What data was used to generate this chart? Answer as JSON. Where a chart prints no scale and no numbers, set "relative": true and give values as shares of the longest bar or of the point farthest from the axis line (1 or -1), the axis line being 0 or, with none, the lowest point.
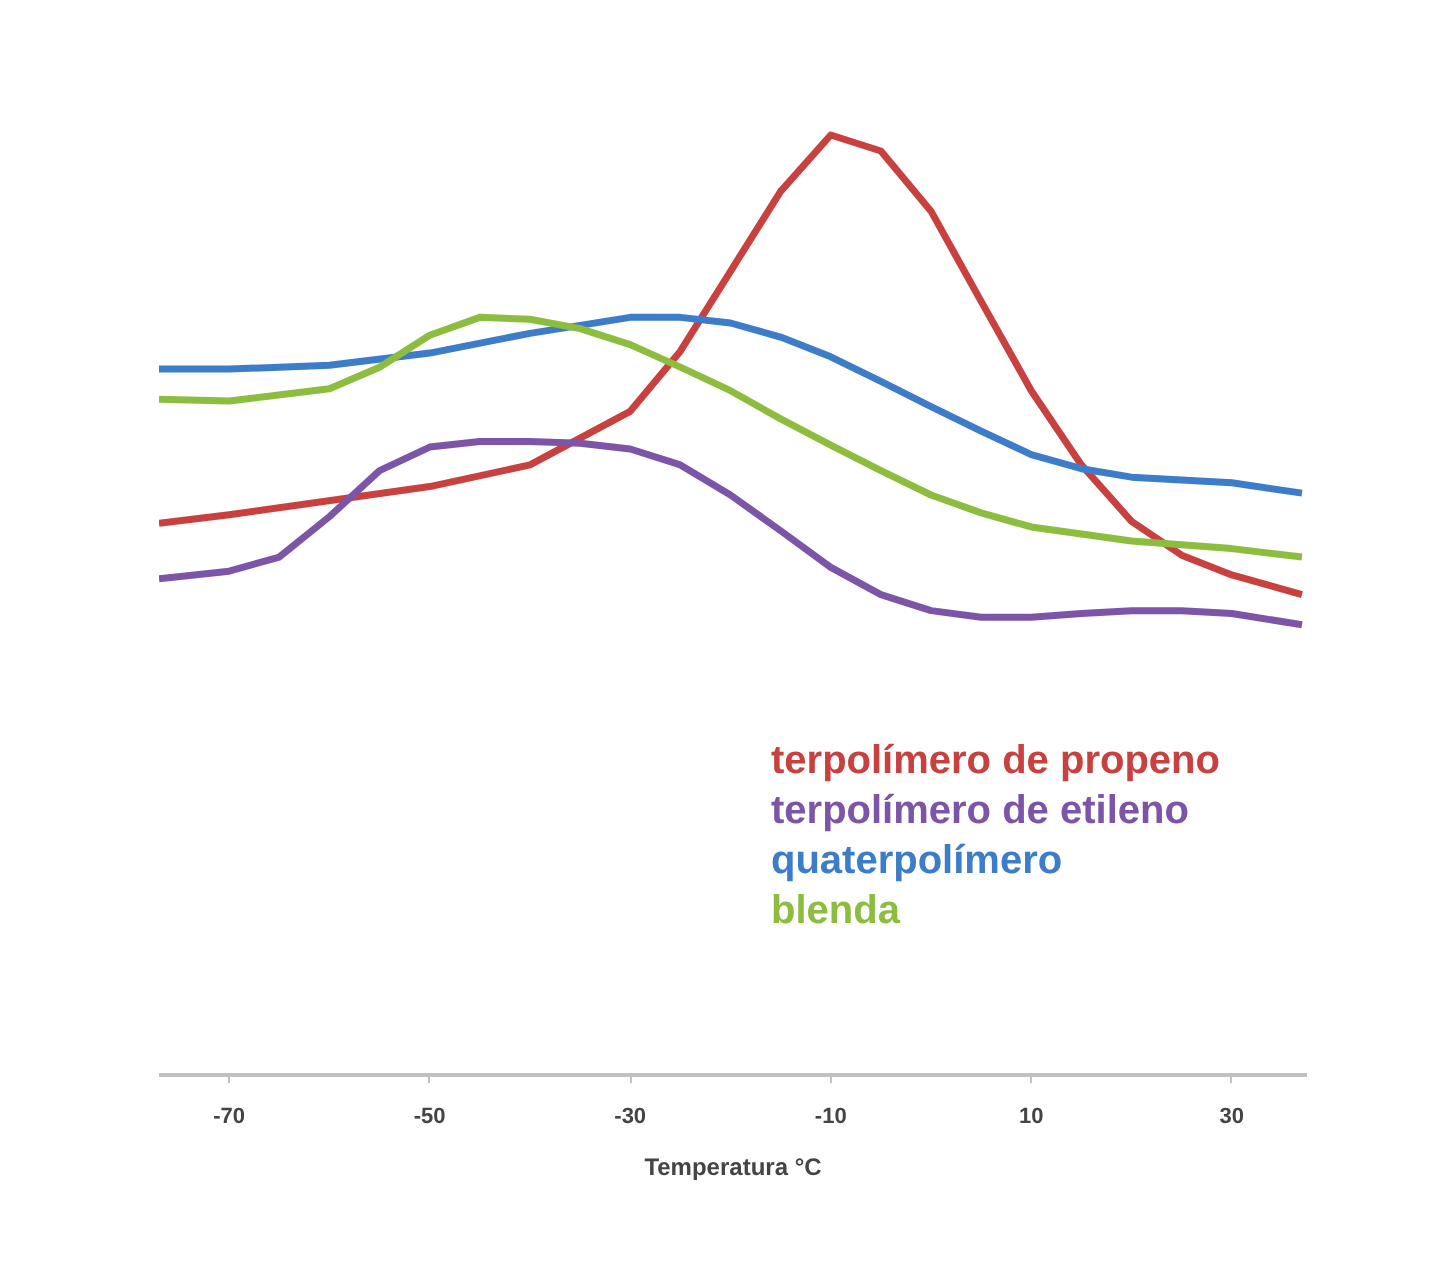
{
  "chart_data": {
    "type": "line",
    "xlabel": "Temperatura °C",
    "relative": true,
    "xlim": [
      -77,
      37.5
    ],
    "xticks": [
      -70,
      -50,
      -30,
      -10,
      10,
      30
    ],
    "grid": false,
    "legend": "bottom right",
    "marker": "none",
    "line_style": "solid",
    "series": [
      {
        "name": "terpolímero de propeno",
        "color": "#c8413f",
        "x": [
          -77,
          -70,
          -50,
          -40,
          -30,
          -25,
          -20,
          -15,
          -10,
          -5,
          0,
          5,
          10,
          15,
          20,
          25,
          30,
          37
        ],
        "values": [
          0.587,
          0.596,
          0.626,
          0.649,
          0.706,
          0.77,
          0.855,
          0.94,
          1.0,
          0.983,
          0.919,
          0.823,
          0.728,
          0.649,
          0.589,
          0.553,
          0.532,
          0.511
        ]
      },
      {
        "name": "terpolímero de etileno",
        "color": "#7d55a8",
        "x": [
          -77,
          -70,
          -65,
          -60,
          -55,
          -50,
          -45,
          -40,
          -35,
          -30,
          -25,
          -20,
          -15,
          -10,
          -5,
          0,
          5,
          10,
          15,
          20,
          25,
          30,
          37
        ],
        "values": [
          0.528,
          0.536,
          0.551,
          0.594,
          0.643,
          0.668,
          0.674,
          0.674,
          0.672,
          0.666,
          0.649,
          0.617,
          0.579,
          0.54,
          0.511,
          0.494,
          0.487,
          0.487,
          0.491,
          0.494,
          0.494,
          0.491,
          0.479
        ]
      },
      {
        "name": "quaterpolímero",
        "color": "#3c7cc8",
        "x": [
          -77,
          -70,
          -60,
          -50,
          -40,
          -30,
          -25,
          -20,
          -15,
          -10,
          -5,
          0,
          5,
          10,
          15,
          20,
          30,
          37
        ],
        "values": [
          0.751,
          0.751,
          0.755,
          0.768,
          0.789,
          0.806,
          0.806,
          0.8,
          0.785,
          0.764,
          0.738,
          0.711,
          0.685,
          0.66,
          0.645,
          0.636,
          0.63,
          0.619
        ]
      },
      {
        "name": "blenda",
        "color": "#8cbd3f",
        "x": [
          -77,
          -70,
          -60,
          -55,
          -50,
          -45,
          -40,
          -35,
          -30,
          -25,
          -20,
          -15,
          -10,
          -5,
          0,
          5,
          10,
          20,
          30,
          37
        ],
        "values": [
          0.719,
          0.717,
          0.73,
          0.753,
          0.787,
          0.806,
          0.804,
          0.794,
          0.777,
          0.753,
          0.728,
          0.698,
          0.67,
          0.643,
          0.617,
          0.598,
          0.583,
          0.568,
          0.56,
          0.551
        ]
      }
    ]
  }
}
